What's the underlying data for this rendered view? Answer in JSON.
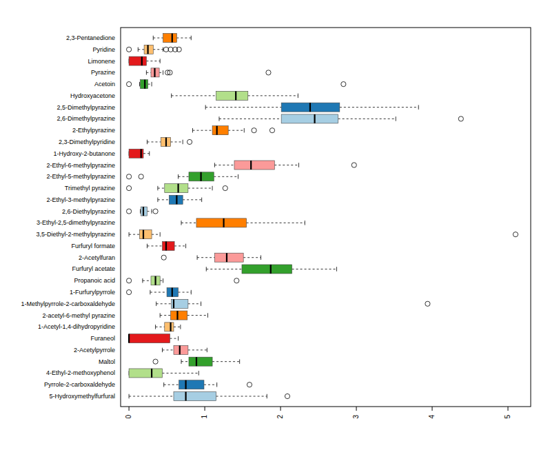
{
  "chart_data": {
    "type": "boxplot",
    "orientation": "horizontal",
    "categories": [
      "2,3-Pentanedione",
      "Pyridine",
      "Limonene",
      "Pyrazine",
      "Acetoin",
      "Hydroxyacetone",
      "2,5-Dimethylpyrazine",
      "2,6-Dimethylpyrazine",
      "2-Ethylpyrazine",
      "2,3-Dimethylpyridine",
      "1-Hydroxy-2-butanone",
      "2-Ethyl-6-methylpyrazine",
      "2-Ethyl-5-methylpyrazine",
      "Trimethyl pyrazine",
      "2-Ethyl-3-methylpyrazine",
      "2,6-Diethylpyrazine",
      "3-Ethyl-2,5-dimethylpyrazine",
      "3,5-Diethyl-2-methylpyrazine",
      "Furfuryl formate",
      "2-Acetylfuran",
      "Furfuryl acetate",
      "Propanoic acid",
      "1-Furfurylpyrrole",
      "1-Methylpyrrole-2-carboxaldehyde",
      "2-acetyl-6-methyl pyrazine",
      "1-Acetyl-1,4-dihydropyridine",
      "Furaneol",
      "2-Acetylpyrrole",
      "Maltol",
      "4-Ethyl-2-methoxyphenol",
      "Pyrrole-2-carboxaldehyde",
      "5-Hydroxymethylfurfural"
    ],
    "boxes": [
      {
        "min": 0.32,
        "q1": 0.45,
        "median": 0.57,
        "q3": 0.63,
        "max": 0.82,
        "outliers": []
      },
      {
        "min": 0.12,
        "q1": 0.2,
        "median": 0.25,
        "q3": 0.32,
        "max": 0.45,
        "outliers": [
          0,
          0.49,
          0.55,
          0.61,
          0.66
        ]
      },
      {
        "min": 0,
        "q1": 0,
        "median": 0.17,
        "q3": 0.23,
        "max": 0.41,
        "outliers": []
      },
      {
        "min": 0.23,
        "q1": 0.29,
        "median": 0.34,
        "q3": 0.4,
        "max": 0.45,
        "outliers": [
          0.51,
          0.54,
          1.84
        ]
      },
      {
        "min": 0.14,
        "q1": 0.15,
        "median": 0.21,
        "q3": 0.25,
        "max": 0.3,
        "outliers": [
          0,
          2.83
        ]
      },
      {
        "min": 0.56,
        "q1": 1.15,
        "median": 1.41,
        "q3": 1.57,
        "max": 2.23,
        "outliers": []
      },
      {
        "min": 1.01,
        "q1": 2.01,
        "median": 2.39,
        "q3": 2.78,
        "max": 3.82,
        "outliers": []
      },
      {
        "min": 1.19,
        "q1": 2.01,
        "median": 2.45,
        "q3": 2.76,
        "max": 3.52,
        "outliers": [
          4.38
        ]
      },
      {
        "min": 0.84,
        "q1": 1.1,
        "median": 1.16,
        "q3": 1.31,
        "max": 1.52,
        "outliers": [
          1.65,
          1.89
        ]
      },
      {
        "min": 0.24,
        "q1": 0.42,
        "median": 0.49,
        "q3": 0.55,
        "max": 0.71,
        "outliers": [
          0.8
        ]
      },
      {
        "min": 0,
        "q1": 0,
        "median": 0.16,
        "q3": 0.19,
        "max": 0.27,
        "outliers": []
      },
      {
        "min": 1.13,
        "q1": 1.39,
        "median": 1.61,
        "q3": 1.92,
        "max": 2.24,
        "outliers": [
          2.97
        ]
      },
      {
        "min": 0.65,
        "q1": 0.79,
        "median": 0.95,
        "q3": 1.12,
        "max": 1.44,
        "outliers": [
          0,
          0.16
        ]
      },
      {
        "min": 0.38,
        "q1": 0.47,
        "median": 0.65,
        "q3": 0.78,
        "max": 1.1,
        "outliers": [
          0,
          1.27
        ]
      },
      {
        "min": 0.38,
        "q1": 0.53,
        "median": 0.63,
        "q3": 0.71,
        "max": 0.96,
        "outliers": []
      },
      {
        "min": 0.15,
        "q1": 0.16,
        "median": 0.19,
        "q3": 0.24,
        "max": 0.3,
        "outliers": [
          0,
          0.35
        ]
      },
      {
        "min": 0.69,
        "q1": 0.89,
        "median": 1.25,
        "q3": 1.55,
        "max": 2.32,
        "outliers": []
      },
      {
        "min": 0,
        "q1": 0.14,
        "median": 0.19,
        "q3": 0.3,
        "max": 0.41,
        "outliers": [
          5.1
        ]
      },
      {
        "min": 0.24,
        "q1": 0.44,
        "median": 0.49,
        "q3": 0.6,
        "max": 0.75,
        "outliers": []
      },
      {
        "min": 0.9,
        "q1": 1.13,
        "median": 1.29,
        "q3": 1.51,
        "max": 1.74,
        "outliers": [
          0.46
        ]
      },
      {
        "min": 1.02,
        "q1": 1.49,
        "median": 1.87,
        "q3": 2.15,
        "max": 2.74,
        "outliers": []
      },
      {
        "min": 0.18,
        "q1": 0.29,
        "median": 0.35,
        "q3": 0.41,
        "max": 0.45,
        "outliers": [
          0,
          1.42
        ]
      },
      {
        "min": 0.28,
        "q1": 0.5,
        "median": 0.57,
        "q3": 0.65,
        "max": 0.82,
        "outliers": [
          0
        ]
      },
      {
        "min": 0.36,
        "q1": 0.56,
        "median": 0.59,
        "q3": 0.78,
        "max": 0.95,
        "outliers": [
          3.94
        ]
      },
      {
        "min": 0.41,
        "q1": 0.55,
        "median": 0.64,
        "q3": 0.77,
        "max": 1.04,
        "outliers": []
      },
      {
        "min": 0.35,
        "q1": 0.47,
        "median": 0.55,
        "q3": 0.59,
        "max": 0.68,
        "outliers": []
      },
      {
        "min": 0,
        "q1": 0,
        "median": 0,
        "q3": 0.54,
        "max": 0.65,
        "outliers": []
      },
      {
        "min": 0.44,
        "q1": 0.59,
        "median": 0.67,
        "q3": 0.78,
        "max": 1.03,
        "outliers": []
      },
      {
        "min": 0.69,
        "q1": 0.79,
        "median": 0.89,
        "q3": 1.1,
        "max": 1.46,
        "outliers": [
          0.35
        ]
      },
      {
        "min": 0,
        "q1": 0,
        "median": 0.3,
        "q3": 0.44,
        "max": 0.92,
        "outliers": []
      },
      {
        "min": 0.46,
        "q1": 0.66,
        "median": 0.75,
        "q3": 0.99,
        "max": 1.16,
        "outliers": [
          1.59
        ]
      },
      {
        "min": 0,
        "q1": 0.59,
        "median": 0.75,
        "q3": 1.15,
        "max": 1.82,
        "outliers": [
          2.09
        ]
      }
    ],
    "colors": [
      "#FF7F00",
      "#FDBF6F",
      "#E31A1C",
      "#FB9A99",
      "#33A02C",
      "#B2DF8A",
      "#1F78B4",
      "#A6CEE3",
      "#FF7F00",
      "#FDBF6F",
      "#E31A1C",
      "#FB9A99",
      "#33A02C",
      "#B2DF8A",
      "#1F78B4",
      "#A6CEE3",
      "#FF7F00",
      "#FDBF6F",
      "#E31A1C",
      "#FB9A99",
      "#33A02C",
      "#B2DF8A",
      "#1F78B4",
      "#A6CEE3",
      "#FF7F00",
      "#FDBF6F",
      "#E31A1C",
      "#FB9A99",
      "#33A02C",
      "#B2DF8A",
      "#1F78B4",
      "#A6CEE3"
    ],
    "xlim": [
      -0.11,
      5.3
    ],
    "xticks": [
      0,
      1,
      2,
      3,
      4,
      5
    ]
  }
}
